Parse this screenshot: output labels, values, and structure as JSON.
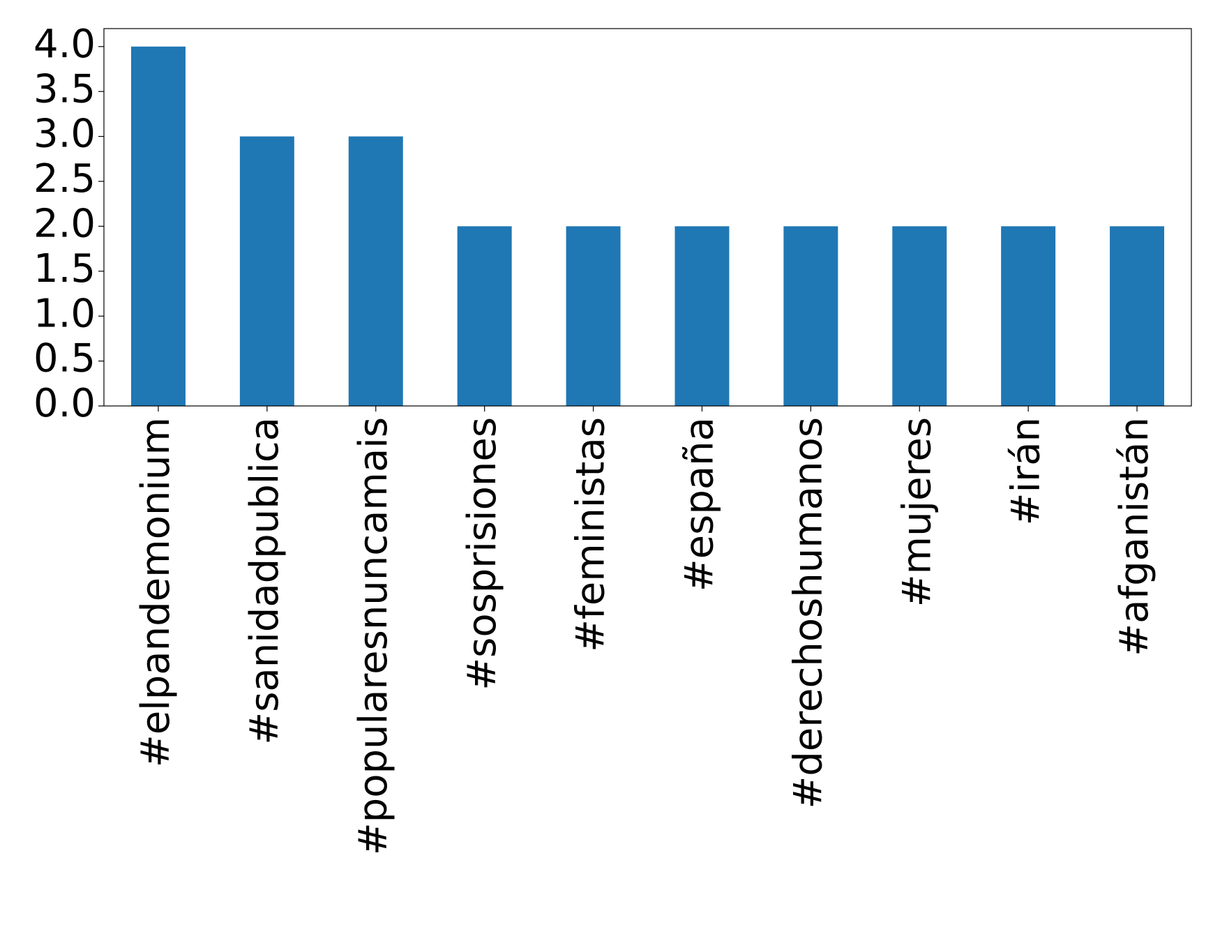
{
  "chart_data": {
    "type": "bar",
    "categories": [
      "#elpandemonium",
      "#sanidadpublica",
      "#popularesnuncamais",
      "#sosprisiones",
      "#feministas",
      "#españa",
      "#derechoshumanos",
      "#mujeres",
      "#irán",
      "#afganistán"
    ],
    "values": [
      4,
      3,
      3,
      2,
      2,
      2,
      2,
      2,
      2,
      2
    ],
    "color": "#1f77b4",
    "ylim": [
      0,
      4.2
    ],
    "yticks": [
      {
        "value": 0,
        "label": "0.0"
      },
      {
        "value": 0.5,
        "label": "0.5"
      },
      {
        "value": 1,
        "label": "1.0"
      },
      {
        "value": 1.5,
        "label": "1.5"
      },
      {
        "value": 2,
        "label": "2.0"
      },
      {
        "value": 2.5,
        "label": "2.5"
      },
      {
        "value": 3,
        "label": "3.0"
      },
      {
        "value": 3.5,
        "label": "3.5"
      },
      {
        "value": 4,
        "label": "4.0"
      }
    ]
  }
}
